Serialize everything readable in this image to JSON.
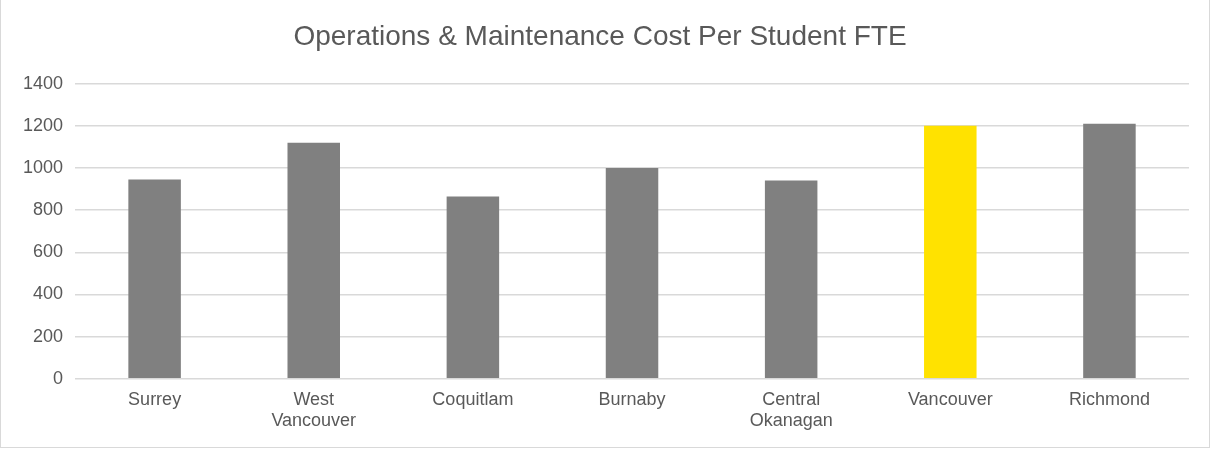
{
  "chart_data": {
    "type": "bar",
    "title": "Operations & Maintenance Cost Per Student FTE",
    "categories": [
      "Surrey",
      "West Vancouver",
      "Coquitlam",
      "Burnaby",
      "Central Okanagan",
      "Vancouver",
      "Richmond"
    ],
    "values": [
      945,
      1120,
      865,
      1000,
      940,
      1200,
      1210
    ],
    "colors": [
      "#808080",
      "#808080",
      "#808080",
      "#808080",
      "#808080",
      "#ffe200",
      "#808080"
    ],
    "ylim": [
      0,
      1400
    ],
    "yticks": [
      0,
      200,
      400,
      600,
      800,
      1000,
      1200,
      1400
    ],
    "grid": "y"
  }
}
